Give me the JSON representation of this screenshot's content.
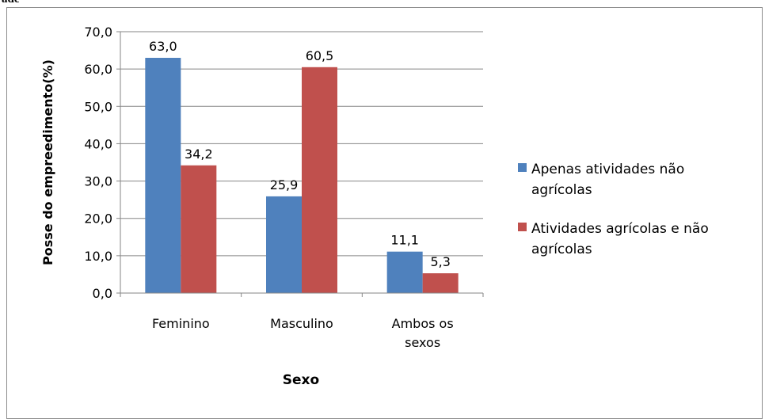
{
  "header_fragment": "ade",
  "chart_data": {
    "type": "bar",
    "categories": [
      "Feminino",
      "Masculino",
      "Ambos os sexos"
    ],
    "category_lines": [
      [
        "Feminino"
      ],
      [
        "Masculino"
      ],
      [
        "Ambos os",
        "sexos"
      ]
    ],
    "series": [
      {
        "name": "Apenas atividades não agrícolas",
        "legend_lines": [
          "Apenas atividades não",
          "agrícolas"
        ],
        "color": "#4f81bd",
        "values": [
          63.0,
          25.9,
          11.1
        ],
        "labels": [
          "63,0",
          "25,9",
          "11,1"
        ]
      },
      {
        "name": "Atividades agrícolas e não agrícolas",
        "legend_lines": [
          "Atividades agrícolas e não",
          "agrícolas"
        ],
        "color": "#c0504d",
        "values": [
          34.2,
          60.5,
          5.3
        ],
        "labels": [
          "34,2",
          "60,5",
          "5,3"
        ]
      }
    ],
    "xlabel": "Sexo",
    "ylabel": "Posse do empreedimento(%)",
    "ylim": [
      0,
      70
    ],
    "yticks": [
      0,
      10,
      20,
      30,
      40,
      50,
      60,
      70
    ],
    "ytick_labels": [
      "0,0",
      "10,0",
      "20,0",
      "30,0",
      "40,0",
      "50,0",
      "60,0",
      "70,0"
    ],
    "grid": true,
    "legend": "right"
  }
}
